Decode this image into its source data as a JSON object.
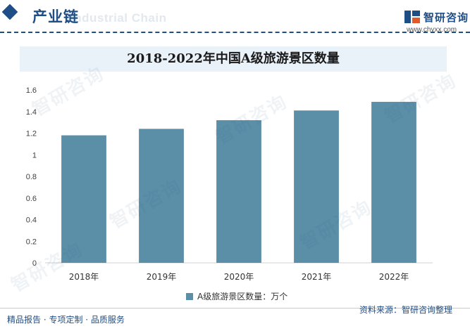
{
  "header": {
    "section_title": "产业链",
    "section_title_en": "Industrial Chain",
    "brand_name": "智研咨询",
    "brand_url": "www.chyxx.com"
  },
  "watermark_text": "智研咨询",
  "chart_data": {
    "type": "bar",
    "title": "2018-2022年中国A级旅游景区数量",
    "categories": [
      "2018年",
      "2019年",
      "2020年",
      "2021年",
      "2022年"
    ],
    "series": [
      {
        "name": "A级旅游景区数量：万个",
        "values": [
          1.18,
          1.24,
          1.32,
          1.41,
          1.49
        ],
        "color": "#5b8fa8"
      }
    ],
    "ylim": [
      0,
      1.6
    ],
    "yticks": [
      "0",
      "0.2",
      "0.4",
      "0.6",
      "0.8",
      "1",
      "1.2",
      "1.4",
      "1.6"
    ],
    "grid": false,
    "legend": "bottom"
  },
  "footer": {
    "left_text": "精品报告 · 专项定制 · 品质服务",
    "source_text": "资料来源：智研咨询整理"
  }
}
